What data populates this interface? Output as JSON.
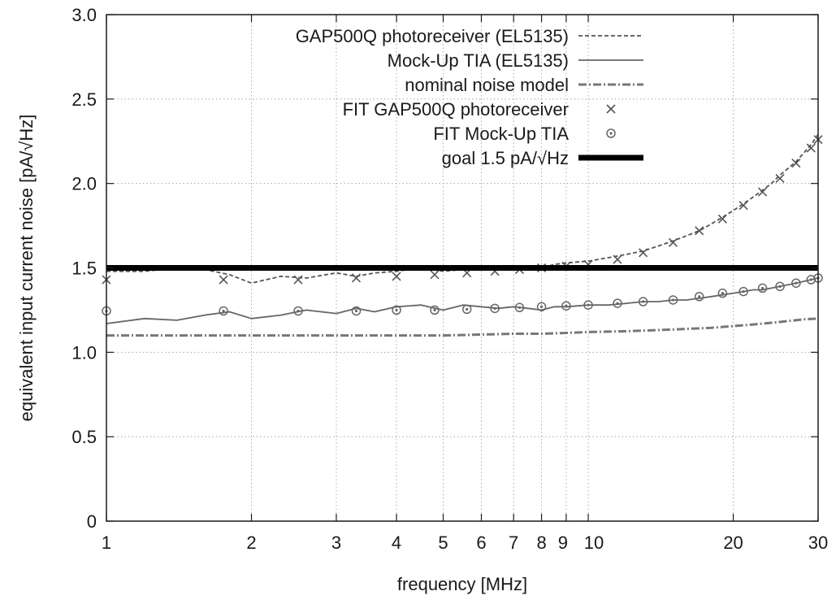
{
  "chart_data": {
    "type": "line",
    "xlabel": "frequency [MHz]",
    "ylabel": "equivalent input current noise [pA/√Hz]",
    "x_scale": "log",
    "xlim": [
      1,
      30
    ],
    "ylim": [
      0,
      3.0
    ],
    "grid": true,
    "legend_position": "top-right",
    "x_ticks": [
      {
        "value": 1,
        "label": "1"
      },
      {
        "value": 2,
        "label": "2"
      },
      {
        "value": 3,
        "label": "3"
      },
      {
        "value": 4,
        "label": "4"
      },
      {
        "value": 5,
        "label": "5"
      },
      {
        "value": 6,
        "label": "6"
      },
      {
        "value": 7,
        "label": "7"
      },
      {
        "value": 8,
        "label": "8"
      },
      {
        "value": 9,
        "label": "9"
      },
      {
        "value": 10,
        "label": "10"
      },
      {
        "value": 20,
        "label": "20"
      },
      {
        "value": 30,
        "label": "30"
      }
    ],
    "y_ticks": [
      {
        "value": 0,
        "label": "0"
      },
      {
        "value": 0.5,
        "label": "0.5"
      },
      {
        "value": 1.0,
        "label": "1.0"
      },
      {
        "value": 1.5,
        "label": "1.5"
      },
      {
        "value": 2.0,
        "label": "2.0"
      },
      {
        "value": 2.5,
        "label": "2.5"
      },
      {
        "value": 3.0,
        "label": "3.0"
      }
    ],
    "series": [
      {
        "name": "GAP500Q photoreceiver (EL5135)",
        "style": "dashed",
        "color": "#555555",
        "x": [
          1.0,
          1.2,
          1.4,
          1.6,
          1.8,
          2.0,
          2.3,
          2.6,
          3.0,
          3.3,
          3.6,
          4.0,
          4.5,
          5.0,
          5.5,
          6.0,
          6.5,
          7.0,
          7.5,
          8.0,
          8.5,
          9.0,
          10.0,
          11.0,
          12.0,
          13.0,
          14.0,
          15.0,
          16.0,
          17.0,
          18.0,
          19.0,
          20.0,
          21.0,
          22.0,
          23.0,
          24.0,
          25.0,
          26.0,
          27.0,
          28.0,
          29.0,
          30.0
        ],
        "y": [
          1.48,
          1.48,
          1.5,
          1.49,
          1.46,
          1.41,
          1.45,
          1.44,
          1.47,
          1.45,
          1.47,
          1.48,
          1.5,
          1.48,
          1.49,
          1.49,
          1.49,
          1.5,
          1.51,
          1.5,
          1.52,
          1.53,
          1.54,
          1.56,
          1.58,
          1.6,
          1.63,
          1.66,
          1.69,
          1.72,
          1.76,
          1.8,
          1.84,
          1.88,
          1.92,
          1.96,
          2.0,
          2.05,
          2.09,
          2.13,
          2.18,
          2.23,
          2.29
        ]
      },
      {
        "name": "Mock-Up TIA (EL5135)",
        "style": "solid",
        "color": "#666666",
        "x": [
          1.0,
          1.2,
          1.4,
          1.6,
          1.8,
          2.0,
          2.3,
          2.6,
          3.0,
          3.3,
          3.6,
          4.0,
          4.5,
          5.0,
          5.5,
          6.0,
          6.5,
          7.0,
          7.5,
          8.0,
          8.5,
          9.0,
          10.0,
          11.0,
          12.0,
          13.0,
          14.0,
          15.0,
          16.0,
          17.0,
          18.0,
          19.0,
          20.0,
          21.0,
          22.0,
          23.0,
          24.0,
          25.0,
          26.0,
          27.0,
          28.0,
          29.0,
          30.0
        ],
        "y": [
          1.17,
          1.2,
          1.19,
          1.22,
          1.24,
          1.2,
          1.22,
          1.25,
          1.23,
          1.26,
          1.24,
          1.27,
          1.28,
          1.25,
          1.28,
          1.27,
          1.26,
          1.27,
          1.26,
          1.25,
          1.27,
          1.27,
          1.28,
          1.28,
          1.29,
          1.3,
          1.3,
          1.31,
          1.31,
          1.32,
          1.33,
          1.34,
          1.35,
          1.36,
          1.37,
          1.37,
          1.38,
          1.39,
          1.4,
          1.41,
          1.42,
          1.43,
          1.44
        ]
      },
      {
        "name": "nominal noise model",
        "style": "dash-dot",
        "color": "#777777",
        "x": [
          1.0,
          2.0,
          3.0,
          4.0,
          5.0,
          6.0,
          7.0,
          8.0,
          9.0,
          10.0,
          12.0,
          15.0,
          18.0,
          20.0,
          22.0,
          25.0,
          28.0,
          30.0
        ],
        "y": [
          1.1,
          1.1,
          1.1,
          1.1,
          1.1,
          1.105,
          1.11,
          1.11,
          1.115,
          1.12,
          1.125,
          1.135,
          1.145,
          1.155,
          1.165,
          1.18,
          1.195,
          1.2
        ]
      },
      {
        "name": "FIT GAP500Q photoreceiver",
        "style": "cross-markers",
        "color": "#555555",
        "x": [
          1.0,
          1.75,
          2.5,
          3.3,
          4.0,
          4.8,
          5.6,
          6.4,
          7.2,
          8.0,
          9.0,
          10.0,
          11.5,
          13.0,
          15.0,
          17.0,
          19.0,
          21.0,
          23.0,
          25.0,
          27.0,
          29.0,
          30.0
        ],
        "y": [
          1.43,
          1.43,
          1.43,
          1.44,
          1.45,
          1.46,
          1.47,
          1.48,
          1.49,
          1.5,
          1.51,
          1.52,
          1.55,
          1.59,
          1.65,
          1.72,
          1.79,
          1.87,
          1.95,
          2.03,
          2.12,
          2.21,
          2.26
        ]
      },
      {
        "name": "FIT Mock-Up TIA",
        "style": "circle-markers",
        "color": "#666666",
        "x": [
          1.0,
          1.75,
          2.5,
          3.3,
          4.0,
          4.8,
          5.6,
          6.4,
          7.2,
          8.0,
          9.0,
          10.0,
          11.5,
          13.0,
          15.0,
          17.0,
          19.0,
          21.0,
          23.0,
          25.0,
          27.0,
          29.0,
          30.0
        ],
        "y": [
          1.245,
          1.245,
          1.245,
          1.245,
          1.25,
          1.25,
          1.255,
          1.26,
          1.265,
          1.27,
          1.275,
          1.28,
          1.29,
          1.3,
          1.31,
          1.33,
          1.35,
          1.36,
          1.38,
          1.39,
          1.41,
          1.43,
          1.44
        ]
      },
      {
        "name": "goal 1.5 pA/√Hz",
        "style": "thick-solid",
        "color": "#000000",
        "x": [
          1,
          30
        ],
        "y": [
          1.5,
          1.5
        ]
      }
    ]
  }
}
